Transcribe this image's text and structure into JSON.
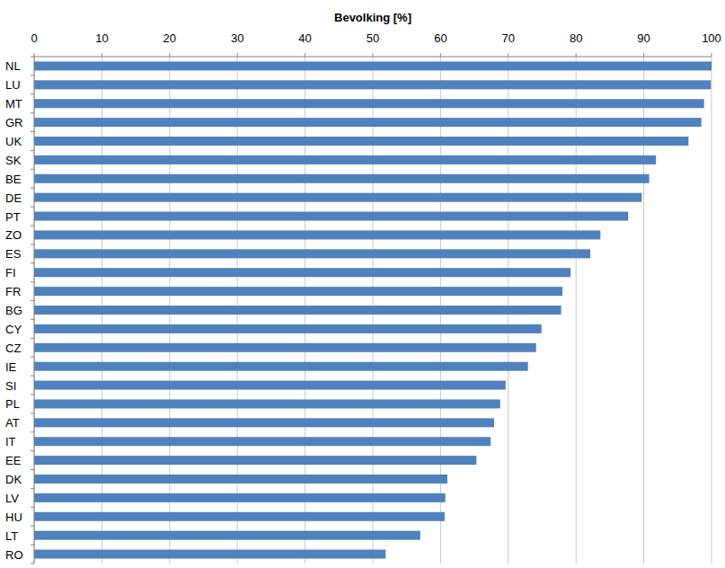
{
  "chart_data": {
    "type": "bar",
    "orientation": "horizontal",
    "xlabel": "Bevolking [%]",
    "categories": [
      "NL",
      "LU",
      "MT",
      "GR",
      "UK",
      "SK",
      "BE",
      "DE",
      "PT",
      "ZO",
      "ES",
      "FI",
      "FR",
      "BG",
      "CY",
      "CZ",
      "IE",
      "SI",
      "PL",
      "AT",
      "IT",
      "EE",
      "DK",
      "LV",
      "HU",
      "LT",
      "RO"
    ],
    "values": [
      100,
      99.9,
      98.9,
      98.5,
      96.6,
      91.8,
      90.8,
      89.7,
      87.7,
      83.6,
      82.1,
      79.2,
      78.0,
      77.8,
      74.9,
      74.1,
      72.9,
      69.6,
      68.8,
      67.9,
      67.4,
      65.3,
      61.0,
      60.7,
      60.6,
      57.0,
      51.9
    ],
    "color": "#4f81bd",
    "xlim": [
      0,
      100
    ],
    "xticks": [
      0,
      10,
      20,
      30,
      40,
      50,
      60,
      70,
      80,
      90,
      100
    ],
    "grid": true
  }
}
